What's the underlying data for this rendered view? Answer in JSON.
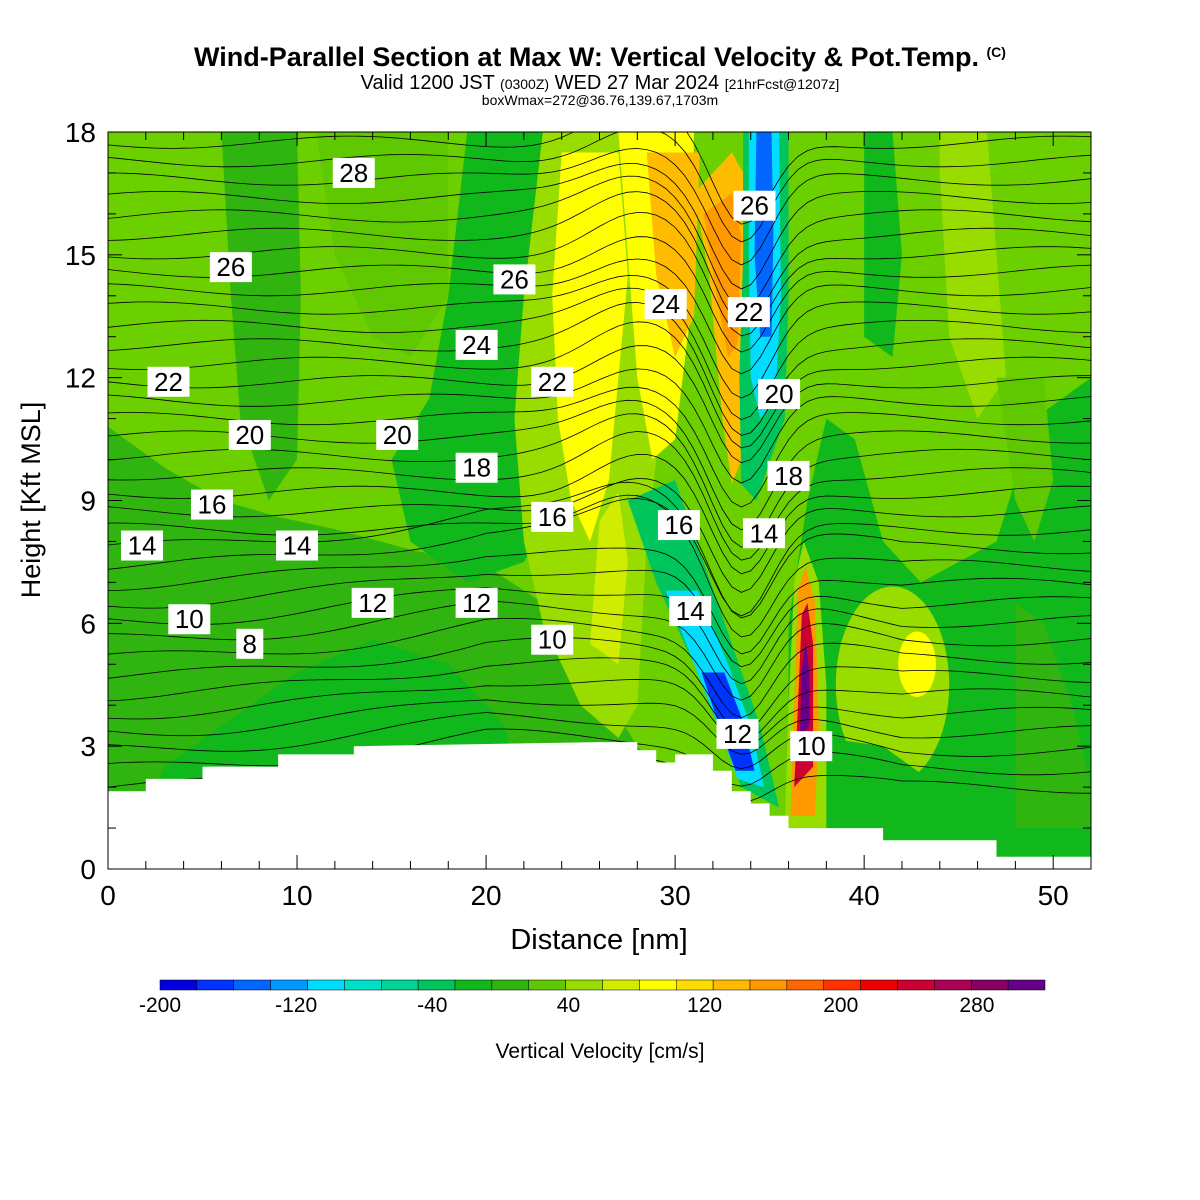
{
  "title": {
    "main": "Wind-Parallel Section at Max W: Vertical Velocity & Pot.Temp.",
    "copyright": "(C)",
    "valid_prefix": "Valid 1200 JST",
    "valid_zulu": "(0300Z)",
    "valid_date": "WED 27 Mar 2024",
    "forecast": "[21hrFcst@1207z]",
    "box_info": "boxWmax=272@36.76,139.67,1703m"
  },
  "chart_data": {
    "type": "heatmap",
    "xlabel": "Distance [nm]",
    "ylabel": "Height [Kft MSL]",
    "xlim": [
      0,
      52
    ],
    "ylim": [
      0,
      18
    ],
    "x_ticks": [
      0,
      10,
      20,
      30,
      40,
      50
    ],
    "y_ticks": [
      0,
      3,
      6,
      9,
      12,
      15,
      18
    ],
    "colorbar": {
      "label": "Vertical Velocity [cm/s]",
      "min": -200,
      "max": 320,
      "step": 20,
      "tick_values": [
        -200,
        -120,
        -40,
        40,
        120,
        200,
        280
      ],
      "colors": [
        "#0000dd",
        "#0033ff",
        "#0066ff",
        "#0099ff",
        "#00ddff",
        "#00e0c8",
        "#00d494",
        "#00c45c",
        "#10b81c",
        "#30b410",
        "#60c800",
        "#98dc00",
        "#d0ec00",
        "#ffff00",
        "#ffdd00",
        "#ffbb00",
        "#ff9900",
        "#ff6600",
        "#ff3300",
        "#ee0000",
        "#cc0033",
        "#aa0055",
        "#880066",
        "#660088"
      ]
    },
    "terrain_kft": [
      [
        0,
        1.9
      ],
      [
        2,
        1.9
      ],
      [
        2,
        2.2
      ],
      [
        5,
        2.2
      ],
      [
        5,
        2.5
      ],
      [
        9,
        2.5
      ],
      [
        9,
        2.8
      ],
      [
        13,
        2.8
      ],
      [
        13,
        3.0
      ],
      [
        26,
        3.1
      ],
      [
        28,
        3.1
      ],
      [
        28,
        2.9
      ],
      [
        29,
        2.9
      ],
      [
        29,
        2.6
      ],
      [
        30,
        2.6
      ],
      [
        30,
        2.8
      ],
      [
        32,
        2.8
      ],
      [
        32,
        2.4
      ],
      [
        33,
        2.4
      ],
      [
        33,
        1.9
      ],
      [
        34,
        1.9
      ],
      [
        34,
        1.6
      ],
      [
        35,
        1.6
      ],
      [
        35,
        1.3
      ],
      [
        36,
        1.3
      ],
      [
        36,
        1.0
      ],
      [
        41,
        1.0
      ],
      [
        41,
        0.7
      ],
      [
        47,
        0.7
      ],
      [
        47,
        0.3
      ],
      [
        52,
        0.3
      ]
    ],
    "vertical_velocity_features": [
      {
        "kind": "updraft",
        "x_nm": 36.8,
        "z_kft": 5.0,
        "max_cms": 272
      },
      {
        "kind": "updraft",
        "x_nm": 32.0,
        "z_kft": 15.0,
        "max_cms": 130
      },
      {
        "kind": "downdraft",
        "x_nm": 34.8,
        "z_kft": 16.0,
        "min_cms": -170
      },
      {
        "kind": "downdraft",
        "x_nm": 32.5,
        "z_kft": 4.0,
        "min_cms": -200
      }
    ],
    "theta_contour_labels": [
      {
        "value": "28",
        "x": 13,
        "y": 17.0
      },
      {
        "value": "26",
        "x": 6.5,
        "y": 14.7
      },
      {
        "value": "26",
        "x": 21.5,
        "y": 14.4
      },
      {
        "value": "26",
        "x": 34.2,
        "y": 16.2
      },
      {
        "value": "24",
        "x": 19.5,
        "y": 12.8
      },
      {
        "value": "24",
        "x": 29.5,
        "y": 13.8
      },
      {
        "value": "22",
        "x": 3.2,
        "y": 11.9
      },
      {
        "value": "22",
        "x": 23.5,
        "y": 11.9
      },
      {
        "value": "22",
        "x": 33.9,
        "y": 13.6
      },
      {
        "value": "20",
        "x": 7.5,
        "y": 10.6
      },
      {
        "value": "20",
        "x": 15.3,
        "y": 10.6
      },
      {
        "value": "20",
        "x": 35.5,
        "y": 11.6
      },
      {
        "value": "18",
        "x": 19.5,
        "y": 9.8
      },
      {
        "value": "18",
        "x": 36.0,
        "y": 9.6
      },
      {
        "value": "16",
        "x": 5.5,
        "y": 8.9
      },
      {
        "value": "16",
        "x": 23.5,
        "y": 8.6
      },
      {
        "value": "16",
        "x": 30.2,
        "y": 8.4
      },
      {
        "value": "14",
        "x": 1.8,
        "y": 7.9
      },
      {
        "value": "14",
        "x": 10.0,
        "y": 7.9
      },
      {
        "value": "14",
        "x": 34.7,
        "y": 8.2
      },
      {
        "value": "14",
        "x": 30.8,
        "y": 6.3
      },
      {
        "value": "12",
        "x": 14.0,
        "y": 6.5
      },
      {
        "value": "12",
        "x": 19.5,
        "y": 6.5
      },
      {
        "value": "12",
        "x": 33.3,
        "y": 3.3
      },
      {
        "value": "10",
        "x": 4.3,
        "y": 6.1
      },
      {
        "value": "10",
        "x": 23.5,
        "y": 5.6
      },
      {
        "value": "10",
        "x": 37.2,
        "y": 3.0
      },
      {
        "value": "8",
        "x": 7.5,
        "y": 5.5
      }
    ]
  }
}
